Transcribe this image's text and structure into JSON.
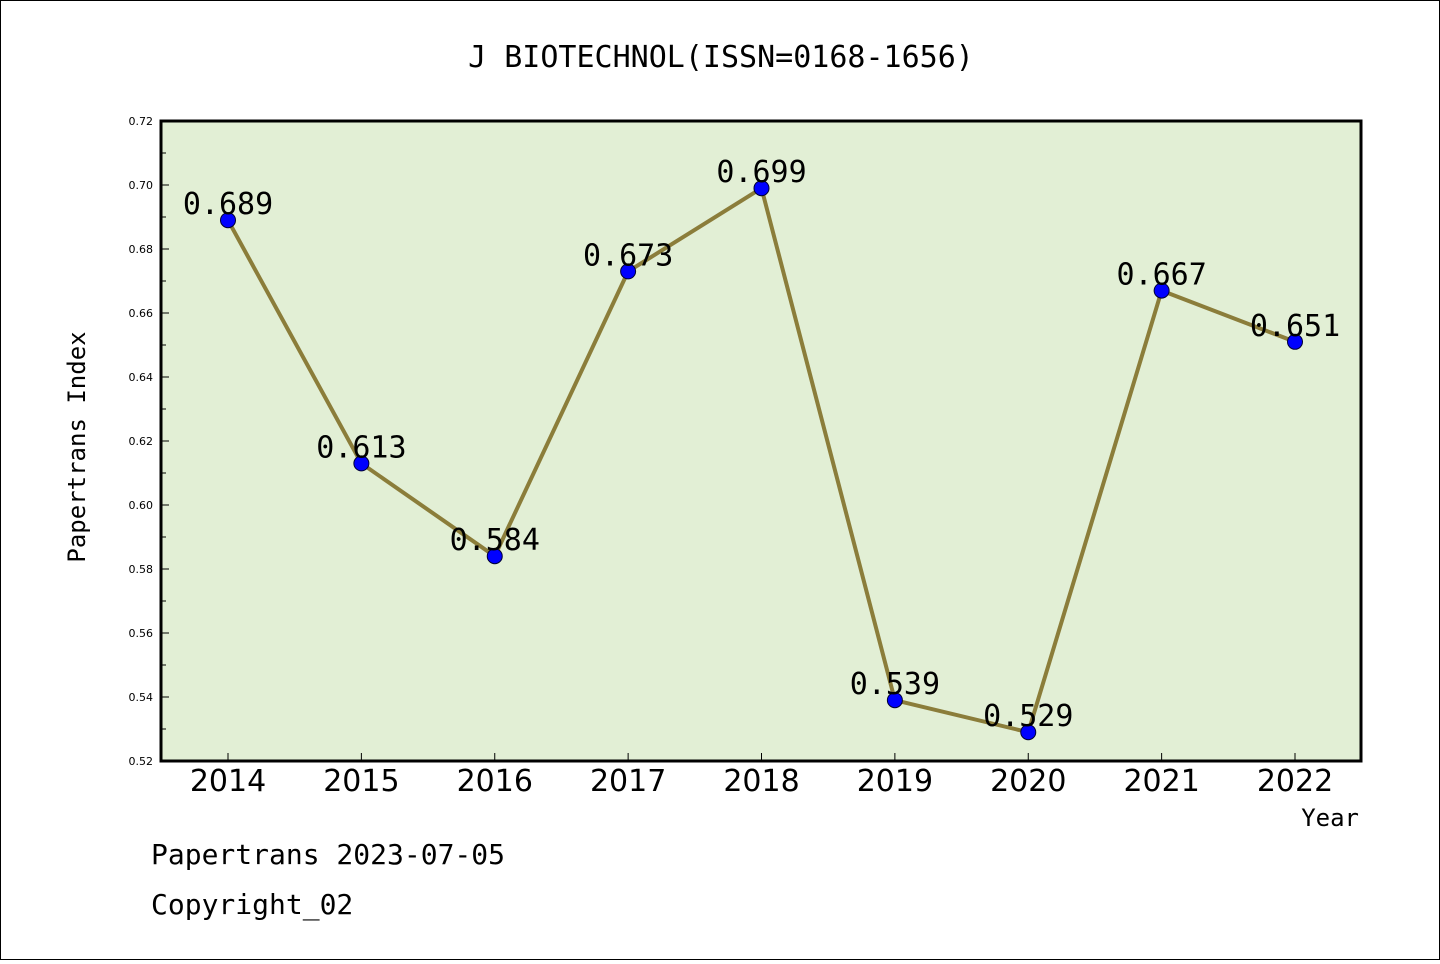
{
  "chart_data": {
    "type": "line",
    "title": "J BIOTECHNOL(ISSN=0168-1656)",
    "xlabel": "Year",
    "ylabel": "Papertrans Index",
    "categories": [
      "2014",
      "2015",
      "2016",
      "2017",
      "2018",
      "2019",
      "2020",
      "2021",
      "2022"
    ],
    "values": [
      0.689,
      0.613,
      0.584,
      0.673,
      0.699,
      0.539,
      0.529,
      0.667,
      0.651
    ],
    "data_labels": [
      "0.689",
      "0.613",
      "0.584",
      "0.673",
      "0.699",
      "0.539",
      "0.529",
      "0.667",
      "0.651"
    ],
    "ylim": [
      0.52,
      0.72
    ],
    "yticks": [
      "0.52",
      "0.54",
      "0.56",
      "0.58",
      "0.60",
      "0.62",
      "0.64",
      "0.66",
      "0.68",
      "0.70",
      "0.72"
    ],
    "grid": false,
    "colors": {
      "plot_bg": "#e2efd5",
      "line": "#8b7d3a",
      "marker": "#0000ff"
    }
  },
  "footer": {
    "line1": "Papertrans 2023-07-05",
    "line2": "Copyright_02"
  }
}
